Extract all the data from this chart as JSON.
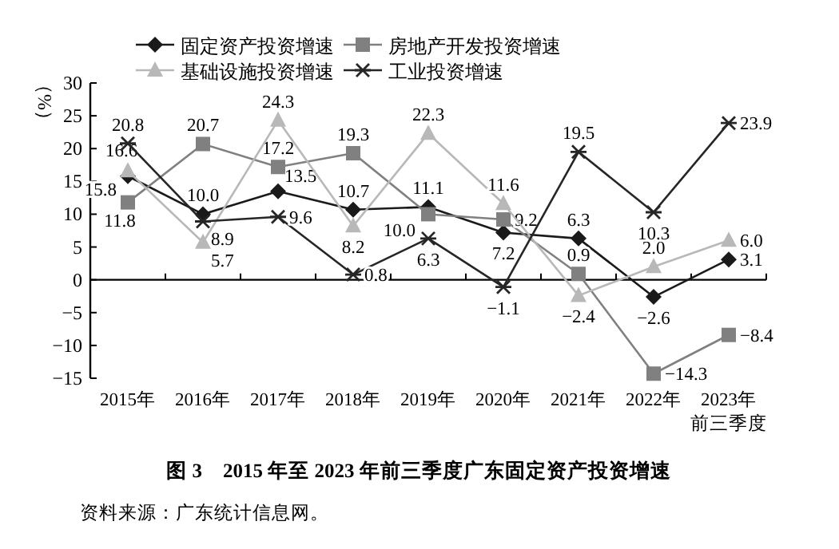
{
  "chart_data": {
    "type": "line",
    "title": "图 3　2015 年至 2023 年前三季度广东固定资产投资增速",
    "ylabel": "（%）",
    "annotations": [
      "资料来源：广东统计信息网。"
    ],
    "categories": [
      "2015年",
      "2016年",
      "2017年",
      "2018年",
      "2019年",
      "2020年",
      "2021年",
      "2022年",
      "2023年前三季度"
    ],
    "series": [
      {
        "name": "固定资产投资增速",
        "color": "#1a1a1a",
        "marker": "diamond",
        "values": [
          15.8,
          10.0,
          13.5,
          10.7,
          11.1,
          7.2,
          6.3,
          -2.6,
          3.1
        ],
        "value_labels": [
          "15.8",
          "10.0",
          "13.5",
          "10.7",
          "11.1",
          "7.2",
          "6.3",
          "−2.6",
          "3.1"
        ]
      },
      {
        "name": "房地产开发投资增速",
        "color": "#808080",
        "marker": "square",
        "values": [
          11.8,
          20.7,
          17.2,
          19.3,
          10.0,
          9.2,
          0.9,
          -14.3,
          -8.4
        ],
        "value_labels": [
          "11.8",
          "20.7",
          "17.2",
          "19.3",
          "10.0",
          "9.2",
          "0.9",
          "−14.3",
          "−8.4"
        ]
      },
      {
        "name": "基础设施投资增速",
        "color": "#b8b8b8",
        "marker": "triangle",
        "values": [
          16.6,
          5.7,
          24.3,
          8.2,
          22.3,
          11.6,
          -2.4,
          2.0,
          6.0
        ],
        "value_labels": [
          "16.6",
          "5.7",
          "24.3",
          "8.2",
          "22.3",
          "11.6",
          "−2.4",
          "2.0",
          "6.0"
        ]
      },
      {
        "name": "工业投资增速",
        "color": "#262626",
        "marker": "cross",
        "values": [
          20.8,
          8.9,
          9.6,
          0.8,
          6.3,
          -1.1,
          19.5,
          10.3,
          23.9
        ],
        "value_labels": [
          "20.8",
          "8.9",
          "9.6",
          "0.8",
          "6.3",
          "−1.1",
          "19.5",
          "10.3",
          "23.9"
        ]
      }
    ],
    "ylim": [
      -15,
      30
    ],
    "yticks": [
      -15,
      -10,
      -5,
      0,
      5,
      10,
      15,
      20,
      25,
      30
    ],
    "legend": "top",
    "line_style": "solid"
  }
}
